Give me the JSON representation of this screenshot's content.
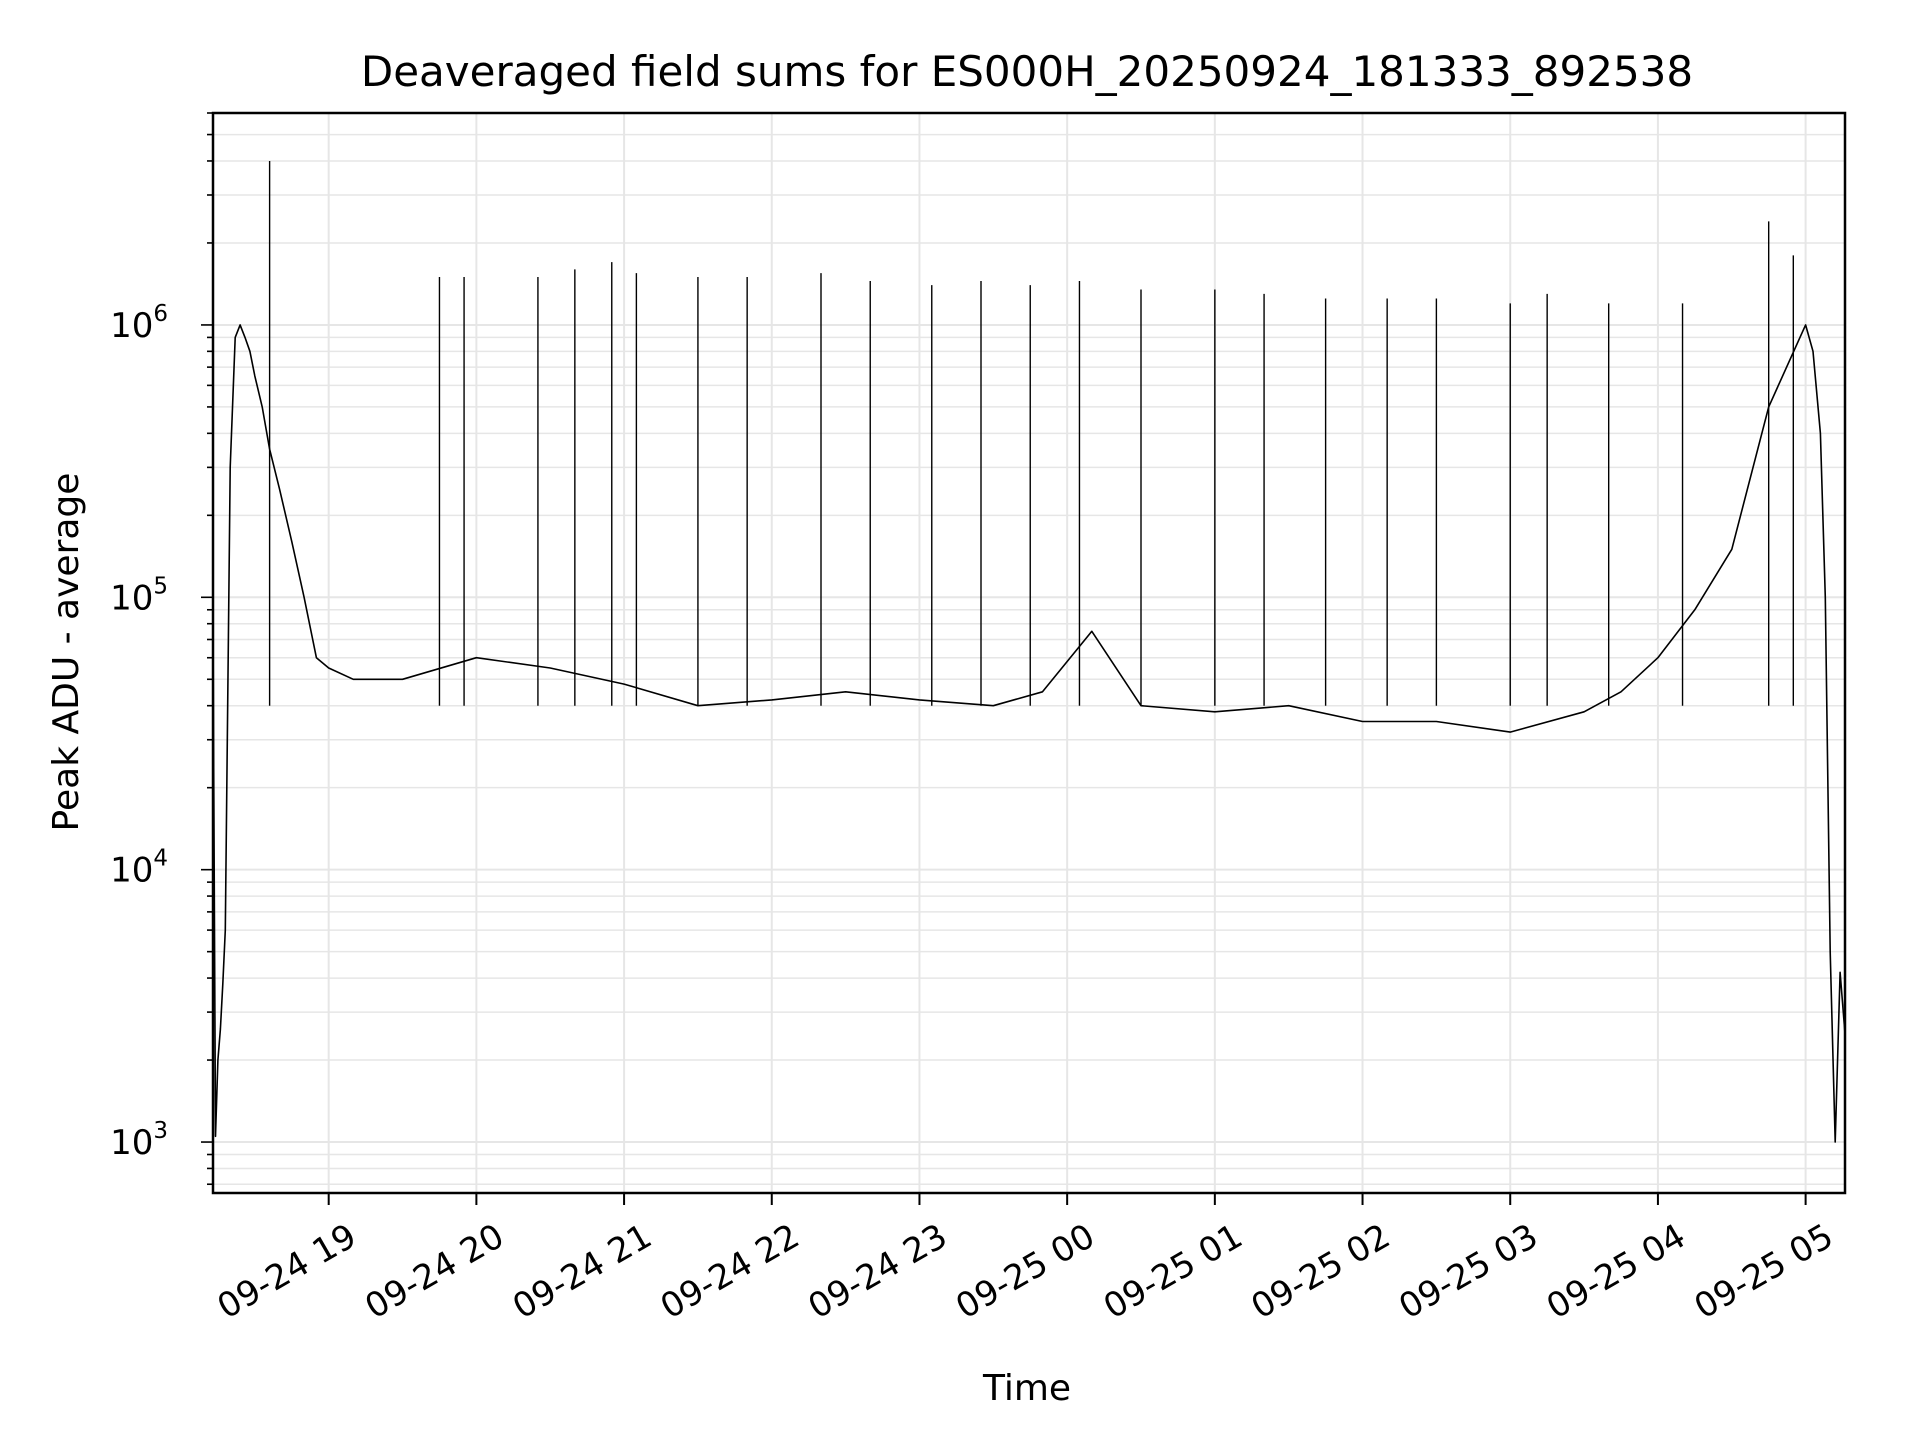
{
  "chart_data": {
    "type": "line",
    "title": "Deaveraged field sums for ES000H_20250924_181333_892538",
    "xlabel": "Time",
    "ylabel": "Peak ADU - average",
    "yscale": "log",
    "ylim": [
      650,
      6000000
    ],
    "xlim": [
      "2025-09-24 18:13",
      "2025-09-25 05:16"
    ],
    "grid": true,
    "x_ticks": [
      {
        "label": "09-24 19",
        "value": "2025-09-24 19:00"
      },
      {
        "label": "09-24 20",
        "value": "2025-09-24 20:00"
      },
      {
        "label": "09-24 21",
        "value": "2025-09-24 21:00"
      },
      {
        "label": "09-24 22",
        "value": "2025-09-24 22:00"
      },
      {
        "label": "09-24 23",
        "value": "2025-09-24 23:00"
      },
      {
        "label": "09-25 00",
        "value": "2025-09-25 00:00"
      },
      {
        "label": "09-25 01",
        "value": "2025-09-25 01:00"
      },
      {
        "label": "09-25 02",
        "value": "2025-09-25 02:00"
      },
      {
        "label": "09-25 03",
        "value": "2025-09-25 03:00"
      },
      {
        "label": "09-25 04",
        "value": "2025-09-25 04:00"
      },
      {
        "label": "09-25 05",
        "value": "2025-09-25 05:00"
      }
    ],
    "y_ticks": [
      {
        "base": "10",
        "exp": "3",
        "value": 1000
      },
      {
        "base": "10",
        "exp": "4",
        "value": 10000
      },
      {
        "base": "10",
        "exp": "5",
        "value": 100000
      },
      {
        "base": "10",
        "exp": "6",
        "value": 1000000
      }
    ],
    "line_color": "#000000",
    "grid_color": "#e6e6e6",
    "series": [
      {
        "x": [
          "2025-09-24 18:13",
          "2025-09-24 18:14",
          "2025-09-24 18:15",
          "2025-09-24 18:16",
          "2025-09-24 18:17",
          "2025-09-24 18:18",
          "2025-09-24 18:20",
          "2025-09-24 18:22",
          "2025-09-24 18:24",
          "2025-09-24 18:26",
          "2025-09-24 18:28",
          "2025-09-24 18:30",
          "2025-09-24 18:33",
          "2025-09-24 18:36",
          "2025-09-24 18:40",
          "2025-09-24 18:45",
          "2025-09-24 18:50",
          "2025-09-24 18:55",
          "2025-09-24 19:00",
          "2025-09-24 19:10",
          "2025-09-24 19:30",
          "2025-09-24 20:00",
          "2025-09-24 20:30",
          "2025-09-24 21:00",
          "2025-09-24 21:30",
          "2025-09-24 22:00",
          "2025-09-24 22:30",
          "2025-09-24 23:00",
          "2025-09-24 23:30",
          "2025-09-24 23:50",
          "2025-09-25 00:10",
          "2025-09-25 00:30",
          "2025-09-25 01:00",
          "2025-09-25 01:30",
          "2025-09-25 02:00",
          "2025-09-25 02:30",
          "2025-09-25 03:00",
          "2025-09-25 03:30",
          "2025-09-25 03:45",
          "2025-09-25 04:00",
          "2025-09-25 04:15",
          "2025-09-25 04:30",
          "2025-09-25 04:45",
          "2025-09-25 05:00",
          "2025-09-25 05:03",
          "2025-09-25 05:06",
          "2025-09-25 05:08",
          "2025-09-25 05:10",
          "2025-09-25 05:12",
          "2025-09-25 05:14",
          "2025-09-25 05:16"
        ],
        "values": [
          80000,
          1050,
          2000,
          2600,
          3800,
          6000,
          300000,
          900000,
          1000000,
          900000,
          800000,
          650000,
          500000,
          350000,
          250000,
          160000,
          100000,
          60000,
          55000,
          50000,
          50000,
          60000,
          55000,
          48000,
          40000,
          42000,
          45000,
          42000,
          40000,
          45000,
          75000,
          40000,
          38000,
          40000,
          35000,
          35000,
          32000,
          38000,
          45000,
          60000,
          90000,
          150000,
          500000,
          1000000,
          800000,
          400000,
          100000,
          5000,
          1000,
          4200,
          2500
        ]
      }
    ],
    "spikes": {
      "x": [
        "2025-09-24 18:36",
        "2025-09-24 19:45",
        "2025-09-24 19:55",
        "2025-09-24 20:25",
        "2025-09-24 20:40",
        "2025-09-24 20:55",
        "2025-09-24 21:05",
        "2025-09-24 21:30",
        "2025-09-24 21:50",
        "2025-09-24 22:20",
        "2025-09-24 22:40",
        "2025-09-24 23:05",
        "2025-09-24 23:25",
        "2025-09-24 23:45",
        "2025-09-25 00:05",
        "2025-09-25 00:30",
        "2025-09-25 01:00",
        "2025-09-25 01:20",
        "2025-09-25 01:45",
        "2025-09-25 02:10",
        "2025-09-25 02:30",
        "2025-09-25 03:00",
        "2025-09-25 03:15",
        "2025-09-25 03:40",
        "2025-09-25 04:10",
        "2025-09-25 04:45",
        "2025-09-25 04:55"
      ],
      "values": [
        4000000,
        1500000,
        1500000,
        1500000,
        1600000,
        1700000,
        1550000,
        1500000,
        1500000,
        1550000,
        1450000,
        1400000,
        1450000,
        1400000,
        1450000,
        1350000,
        1350000,
        1300000,
        1250000,
        1250000,
        1250000,
        1200000,
        1300000,
        1200000,
        1200000,
        2400000,
        1800000
      ]
    }
  }
}
